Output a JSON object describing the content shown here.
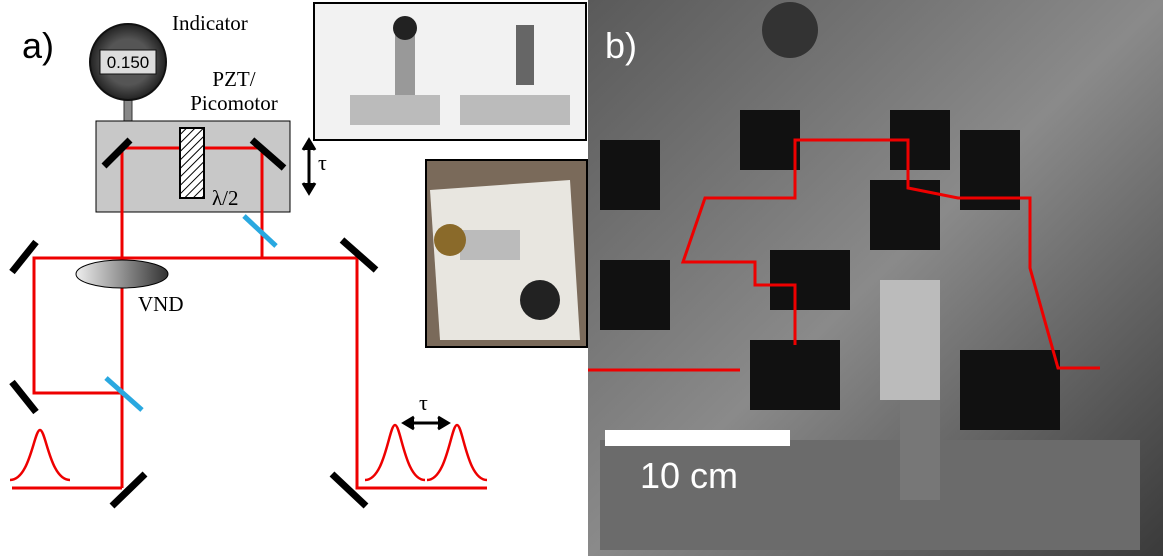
{
  "panel_a": {
    "label": "a)",
    "indicator": "Indicator",
    "display": "0.150",
    "pzt": "PZT/",
    "picomotor": "Picomotor",
    "tau_stage": "τ",
    "waveplate": "λ/2",
    "vnd": "VND",
    "tau_delay": "τ"
  },
  "panel_b": {
    "label": "b)",
    "scale_bar": "10 cm"
  }
}
